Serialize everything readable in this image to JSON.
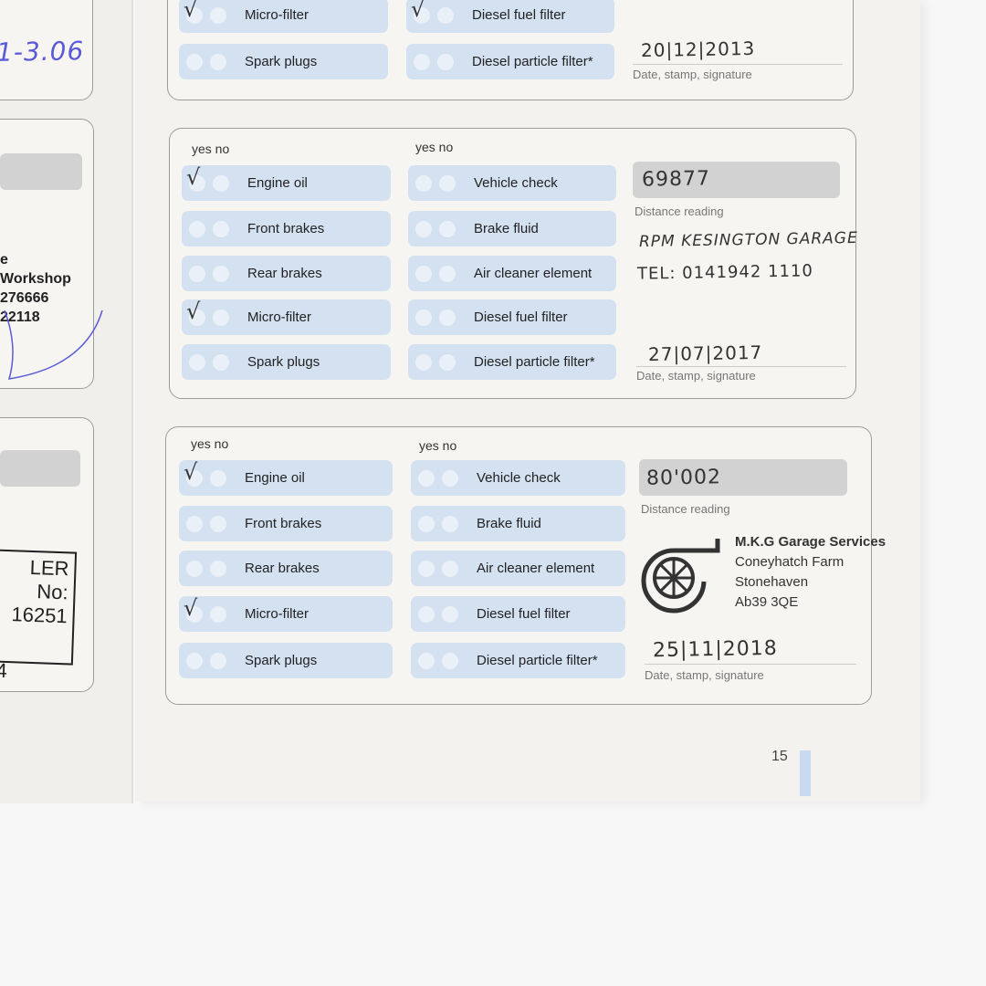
{
  "left_page": {
    "date_handwritten": "1-3.06",
    "stamp_lines": [
      "e",
      "Workshop",
      "276666",
      "22118"
    ],
    "dealer_stamp": [
      "LER No:",
      "16251",
      "4"
    ]
  },
  "cards": [
    {
      "left": [
        {
          "label": "Micro-filter",
          "yes": true
        },
        {
          "label": "Spark plugs",
          "yes": false
        }
      ],
      "right": [
        {
          "label": "Diesel fuel filter",
          "yes": true
        },
        {
          "label": "Diesel particle filter*",
          "yes": false
        }
      ],
      "date": "20|12|2013",
      "date_label": "Date, stamp, signature"
    },
    {
      "yes_no": "yes no",
      "left": [
        {
          "label": "Engine oil",
          "yes": true
        },
        {
          "label": "Front brakes",
          "yes": false
        },
        {
          "label": "Rear brakes",
          "yes": false
        },
        {
          "label": "Micro-filter",
          "yes": true
        },
        {
          "label": "Spark plugs",
          "yes": false
        }
      ],
      "right": [
        {
          "label": "Vehicle check",
          "yes": false
        },
        {
          "label": "Brake fluid",
          "yes": false
        },
        {
          "label": "Air cleaner element",
          "yes": false
        },
        {
          "label": "Diesel fuel filter",
          "yes": false
        },
        {
          "label": "Diesel particle filter*",
          "yes": false
        }
      ],
      "distance": "69877",
      "distance_label": "Distance reading",
      "stamp": [
        "RPM  KESINGTON GARAGE",
        "TEL: 0141942 1110"
      ],
      "date": "27|07|2017",
      "date_label": "Date, stamp, signature"
    },
    {
      "yes_no": "yes no",
      "left": [
        {
          "label": "Engine oil",
          "yes": true
        },
        {
          "label": "Front brakes",
          "yes": false
        },
        {
          "label": "Rear brakes",
          "yes": false
        },
        {
          "label": "Micro-filter",
          "yes": true
        },
        {
          "label": "Spark plugs",
          "yes": false
        }
      ],
      "right": [
        {
          "label": "Vehicle check",
          "yes": false
        },
        {
          "label": "Brake fluid",
          "yes": false
        },
        {
          "label": "Air cleaner element",
          "yes": false
        },
        {
          "label": "Diesel fuel filter",
          "yes": false
        },
        {
          "label": "Diesel particle filter*",
          "yes": false
        }
      ],
      "distance": "80'002",
      "distance_label": "Distance reading",
      "stamp": [
        "M.K.G Garage Services",
        "Coneyhatch Farm",
        "Stonehaven",
        "Ab39 3QE"
      ],
      "date": "25|11|2018",
      "date_label": "Date, stamp, signature"
    }
  ],
  "page_number": "15",
  "colors": {
    "pill": "#d3e1f1",
    "accent_bar": "#c9d9ef",
    "ink_blue": "#5a5ad8"
  }
}
